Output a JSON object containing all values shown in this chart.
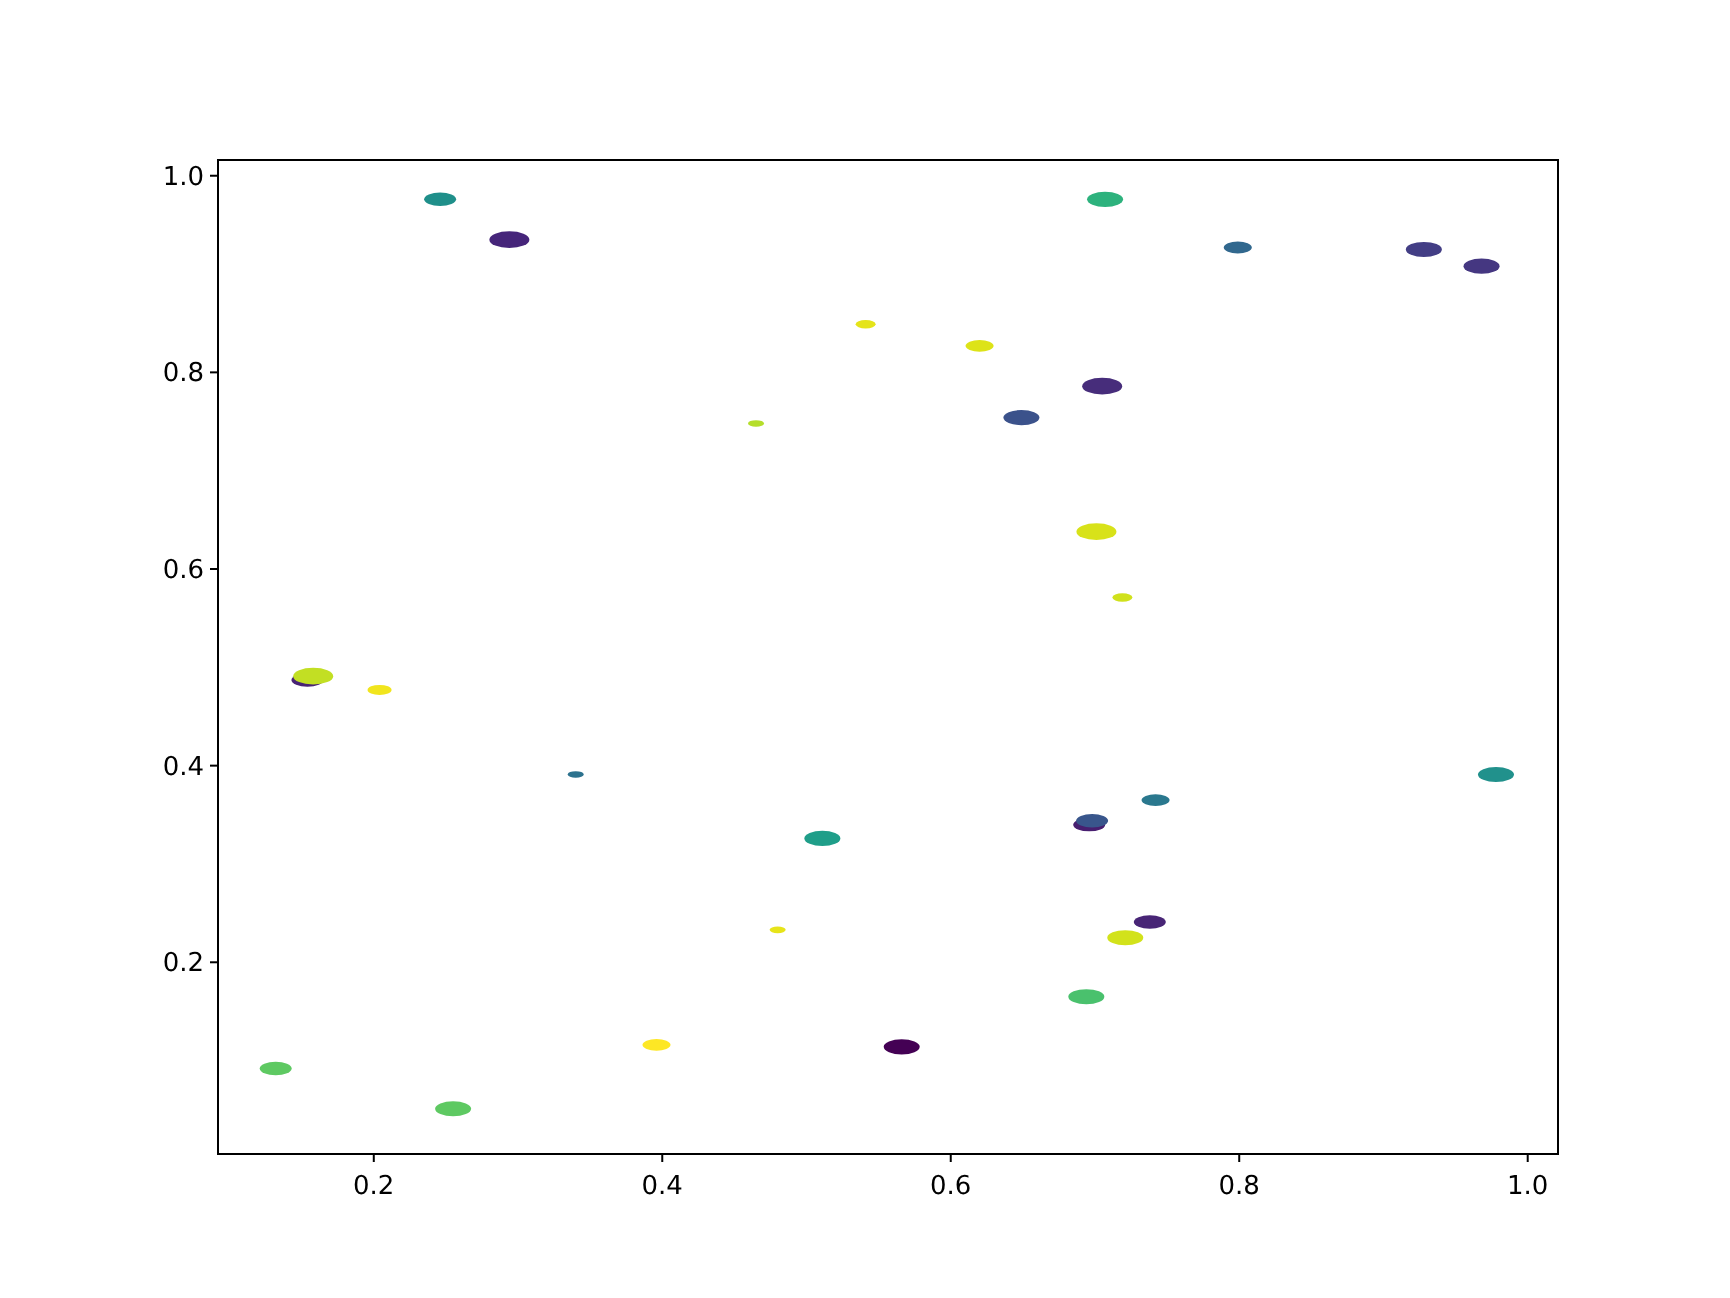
{
  "chart_data": {
    "type": "bubble",
    "marker": "circle",
    "x": [
      0.246,
      0.294,
      0.707,
      0.799,
      0.928,
      0.968,
      0.541,
      0.62,
      0.705,
      0.649,
      0.465,
      0.701,
      0.719,
      0.154,
      0.158,
      0.204,
      0.34,
      0.978,
      0.511,
      0.696,
      0.698,
      0.742,
      0.738,
      0.721,
      0.48,
      0.694,
      0.566,
      0.396,
      0.132,
      0.255
    ],
    "values": [
      0.976,
      0.935,
      0.976,
      0.927,
      0.925,
      0.908,
      0.849,
      0.827,
      0.786,
      0.754,
      0.748,
      0.638,
      0.571,
      0.487,
      0.491,
      0.477,
      0.391,
      0.391,
      0.326,
      0.34,
      0.344,
      0.365,
      0.241,
      0.225,
      0.233,
      0.165,
      0.114,
      0.116,
      0.092,
      0.051
    ],
    "sizes": [
      0.64,
      1,
      0.81,
      0.49,
      0.81,
      0.81,
      0.25,
      0.49,
      1,
      0.81,
      0.16,
      1,
      0.25,
      0.64,
      1,
      0.36,
      0.16,
      0.81,
      0.81,
      0.64,
      0.64,
      0.49,
      0.64,
      0.81,
      0.16,
      0.81,
      0.81,
      0.49,
      0.64,
      0.81
    ],
    "colors": [
      "#1f8f8a",
      "#46257a",
      "#2db27d",
      "#31688e",
      "#433e85",
      "#453781",
      "#e5e419",
      "#dde318",
      "#472d7b",
      "#3b528b",
      "#b5de2b",
      "#d8e219",
      "#d0e11c",
      "#482374",
      "#c2df23",
      "#f1e51d",
      "#2c728e",
      "#21918c",
      "#1f9e89",
      "#481f70",
      "#39568c",
      "#2a788e",
      "#482576",
      "#d2e21b",
      "#e7e419",
      "#4ac16d",
      "#440154",
      "#fde725",
      "#5ec962",
      "#5ec962"
    ],
    "xlim": [
      0.092,
      1.021
    ],
    "ylim": [
      0.005,
      1.016
    ],
    "xticks": [
      0.2,
      0.4,
      0.6,
      0.8,
      {
        "value": 1,
        "label": "1.0"
      }
    ],
    "yticks": [
      0.2,
      0.4,
      0.6,
      0.8,
      {
        "value": 1,
        "label": "1.0"
      }
    ],
    "grid": false
  }
}
